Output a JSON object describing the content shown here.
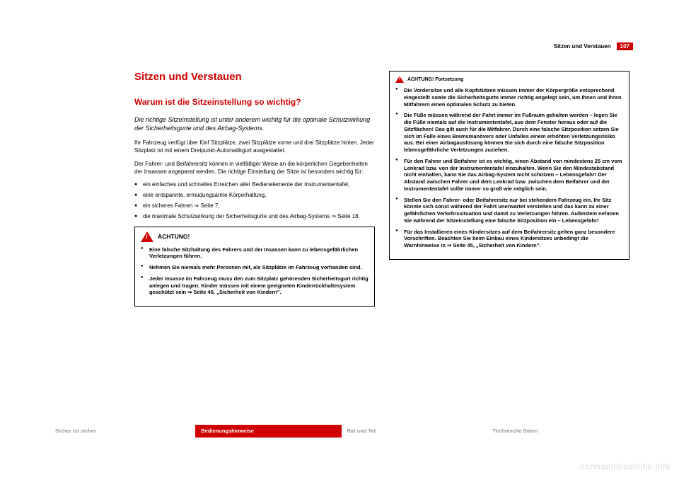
{
  "header": {
    "section": "Sitzen und Verstauen",
    "page": "107"
  },
  "col_left": {
    "title": "Sitzen und Verstauen",
    "subtitle": "Warum ist die Sitzeinstellung so wichtig?",
    "lead": "Die richtige Sitzeinstellung ist unter anderem wichtig für die optimale Schutzwirkung der Sicherheitsgurte und des Airbag-Systems.",
    "p1": "Ihr Fahrzeug verfügt über fünf Sitzplätze, zwei Sitzplätze vorne und drei Sitzplätze hinten. Jeder Sitzplatz ist mit einem Dreipunkt-Automatikgurt ausgestattet.",
    "p2": "Der Fahrer- und Beifahrersitz können in vielfältiger Weise an die körperlichen Gegebenheiten der Insassen angepasst werden. Die richtige Einstellung der Sitze ist besonders wichtig für:",
    "bullets": [
      "ein einfaches und schnelles Erreichen aller Bedienelemente der Instrumententafel,",
      "eine entspannte, ermüdungsarme Körperhaltung,",
      "ein sicheres Fahren ⇒ Seite 7,",
      "die maximale Schutzwirkung der Sicherheitsgurte und des Airbag-Systems ⇒ Seite 18."
    ],
    "warn": {
      "title": "ACHTUNG!",
      "items": [
        "Eine falsche Sitzhaltung des Fahrers und der Insassen kann zu lebensgefährlichen Verletzungen führen.",
        "Nehmen Sie niemals mehr Personen mit, als Sitzplätze im Fahrzeug vorhanden sind.",
        "Jeder Insasse im Fahrzeug muss den zum Sitzplatz gehörenden Sicherheitsgurt richtig anlegen und tragen. Kinder müssen mit einem geeigneten Kinderrückhaltesystem geschützt sein ⇒ Seite 45, „Sicherheit von Kindern\"."
      ]
    }
  },
  "col_right": {
    "cont_title": "ACHTUNG! Fortsetzung",
    "items": [
      "Die Vordersitze und alle Kopfstützen müssen immer der Körpergröße entsprechend eingestellt sowie die Sicherheitsgurte immer richtig angelegt sein, um Ihnen und Ihren Mitfahrern einen optimalen Schutz zu bieten.",
      "Die Füße müssen während der Fahrt immer im Fußraum gehalten werden – legen Sie die Füße niemals auf die Instrumententafel, aus dem Fenster heraus oder auf die Sitzflächen! Das gilt auch für die Mitfahrer. Durch eine falsche Sitzposition setzen Sie sich im Falle eines Bremsmanövers oder Unfalles einem erhöhten Verletzungsrisiko aus. Bei einer Airbagauslösung können Sie sich durch eine falsche Sitzposition lebensgefährliche Verletzungen zuziehen.",
      "Für den Fahrer und Beifahrer ist es wichtig, einen Abstand von mindestens 25 cm vom Lenkrad bzw. von der Instrumententafel einzuhalten. Wenn Sie den Mindestabstand nicht einhalten, kann Sie das Airbag-System nicht schützen – Lebensgefahr! Der Abstand zwischen Fahrer und dem Lenkrad bzw. zwischen dem Beifahrer und der Instrumententafel sollte immer so groß wie möglich sein.",
      "Stellen Sie den Fahrer- oder Beifahrersitz nur bei stehendem Fahrzeug ein. Ihr Sitz könnte sich sonst während der Fahrt unerwartet verstellen und das kann zu einer gefährlichen Verkehrssituation und damit zu Verletzungen führen. Außerdem nehmen Sie während der Sitzeinstellung eine falsche Sitzposition ein – Lebensgefahr!",
      "Für das Installieren eines Kindersitzes auf dem Beifahrersitz gelten ganz besondere Vorschriften. Beachten Sie beim Einbau eines Kindersitzes unbedingt die Warnhinweise in ⇒ Seite 45, „Sicherheit von Kindern\"."
    ]
  },
  "footer": {
    "tabs": [
      "Sicher ist sicher",
      "Bedienungshinweise",
      "Rat und Tat",
      "Technische Daten"
    ]
  },
  "watermark": "carmanualsonline.info",
  "colors": {
    "accent": "#d00000",
    "muted": "#999999",
    "text": "#000000",
    "bg": "#ffffff"
  }
}
